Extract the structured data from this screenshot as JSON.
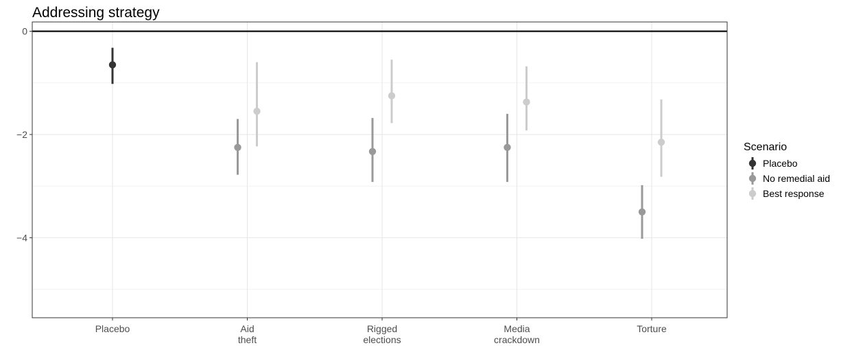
{
  "chart_data": {
    "type": "scatter",
    "subtype": "pointrange",
    "title": "Addressing strategy",
    "xlabel": "",
    "ylabel": "",
    "categories": [
      [
        "Placebo"
      ],
      [
        "Aid",
        "theft"
      ],
      [
        "Rigged",
        "elections"
      ],
      [
        "Media",
        "crackdown"
      ],
      [
        "Torture"
      ]
    ],
    "ylim": [
      -5.55,
      0.18
    ],
    "yticks": [
      0,
      -2,
      -4
    ],
    "ytick_labels": [
      "0",
      "−2",
      "−4"
    ],
    "reference_line": 0,
    "grid": true,
    "legend": {
      "title": "Scenario",
      "position": "right"
    },
    "series": [
      {
        "name": "Placebo",
        "color": "#333333",
        "points": [
          {
            "category": 0,
            "y": -0.65,
            "low": -1.02,
            "high": -0.32
          }
        ]
      },
      {
        "name": "No remedial aid",
        "color": "#999999",
        "points": [
          {
            "category": 1,
            "y": -2.25,
            "low": -2.78,
            "high": -1.7
          },
          {
            "category": 2,
            "y": -2.33,
            "low": -2.92,
            "high": -1.68
          },
          {
            "category": 3,
            "y": -2.25,
            "low": -2.92,
            "high": -1.6
          },
          {
            "category": 4,
            "y": -3.5,
            "low": -4.02,
            "high": -2.98
          }
        ]
      },
      {
        "name": "Best response",
        "color": "#cccccc",
        "points": [
          {
            "category": 1,
            "y": -1.55,
            "low": -2.23,
            "high": -0.6
          },
          {
            "category": 2,
            "y": -1.25,
            "low": -1.78,
            "high": -0.55
          },
          {
            "category": 3,
            "y": -1.37,
            "low": -1.92,
            "high": -0.68
          },
          {
            "category": 4,
            "y": -2.15,
            "low": -2.82,
            "high": -1.32
          }
        ]
      }
    ]
  }
}
